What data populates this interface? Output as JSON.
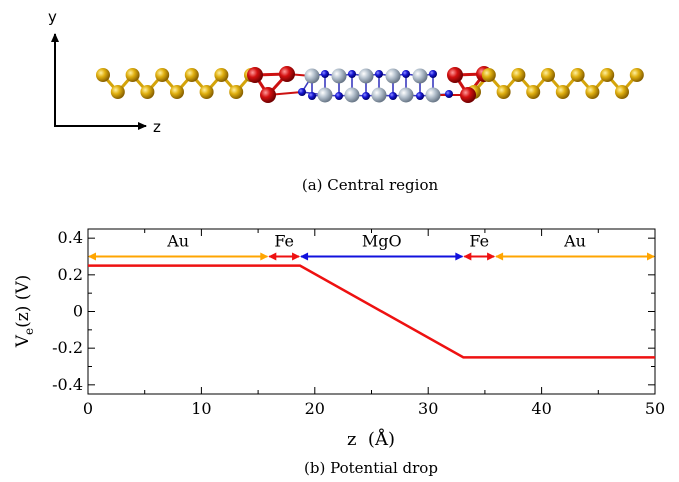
{
  "panel_a": {
    "caption": "(a) Central region",
    "axis_y_label": "y",
    "axis_z_label": "z",
    "atom_colors": {
      "Au": "#d4a40a",
      "Fe": "#cc1111",
      "Mg": "#b4c0cc",
      "O": "#1414cc"
    }
  },
  "panel_b": {
    "caption": "(b) Potential drop"
  },
  "chart_data": {
    "type": "line",
    "title": "",
    "xlabel": "z  (Å)",
    "ylabel_main": "V",
    "ylabel_sub": "e",
    "ylabel_rest": "(z) (V)",
    "xlim": [
      0,
      50
    ],
    "ylim": [
      -0.45,
      0.45
    ],
    "xticks": [
      0,
      10,
      20,
      30,
      40,
      50
    ],
    "xtick_labels": [
      "0",
      "10",
      "20",
      "30",
      "40",
      "50"
    ],
    "yticks": [
      0.4,
      0.2,
      0,
      -0.2,
      -0.4
    ],
    "ytick_labels": [
      "0.4",
      "0.2",
      "0",
      "-0.2",
      "-0.4"
    ],
    "grid": false,
    "series": [
      {
        "color": "#ee1111",
        "x": [
          0,
          18.7,
          33.1,
          50
        ],
        "y": [
          0.25,
          0.25,
          -0.25,
          -0.25
        ]
      }
    ],
    "regions": [
      {
        "label": "Au",
        "start": 0,
        "end": 15.9,
        "color": "#ffa500"
      },
      {
        "label": "Fe",
        "start": 15.9,
        "end": 18.7,
        "color": "#ee1111"
      },
      {
        "label": "MgO",
        "start": 18.7,
        "end": 33.1,
        "color": "#1111dd"
      },
      {
        "label": "Fe",
        "start": 33.1,
        "end": 35.9,
        "color": "#ee1111"
      },
      {
        "label": "Au",
        "start": 35.9,
        "end": 50,
        "color": "#ffa500"
      }
    ],
    "region_arrow_y": 0.3
  }
}
